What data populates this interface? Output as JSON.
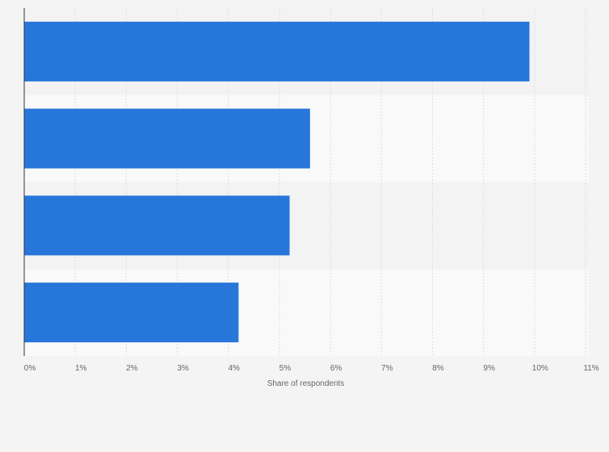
{
  "chart_data": {
    "type": "bar",
    "orientation": "horizontal",
    "categories": [
      "",
      "",
      "",
      ""
    ],
    "values": [
      9.9,
      5.6,
      5.2,
      4.2
    ],
    "xlabel": "Share of respondents",
    "ylabel": "",
    "xlim": [
      0,
      11
    ],
    "xticks": [
      "0%",
      "1%",
      "2%",
      "3%",
      "4%",
      "5%",
      "6%",
      "7%",
      "8%",
      "9%",
      "10%",
      "11%"
    ],
    "grid": true,
    "legend": "none",
    "bar_color": "#2776da",
    "band_colors": [
      "#f3f3f3",
      "#f9f9f9"
    ],
    "grid_color": "#dddddd",
    "axis_color": "#333333",
    "page_background": "#f4f4f4"
  }
}
